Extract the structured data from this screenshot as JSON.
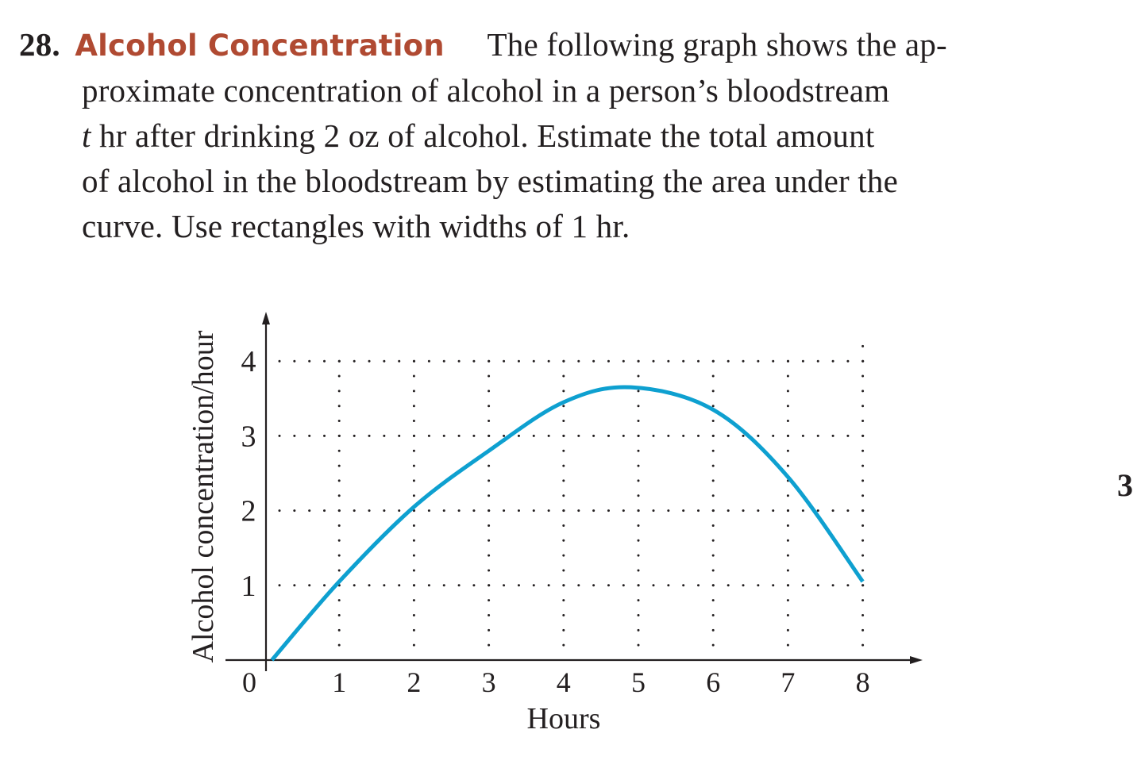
{
  "problem": {
    "number": "28.",
    "title": "Alcohol Concentration",
    "title_color": "#b04a32",
    "lines": [
      "The following graph shows the ap-",
      "proximate concentration of alcohol in a person’s bloodstream",
      "hr after drinking 2 oz of alcohol. Estimate the total amount",
      "of alcohol in the bloodstream by estimating the area under the",
      "curve. Use rectangles with widths of 1 hr."
    ],
    "variable": "t"
  },
  "side_marker": "3",
  "chart_data": {
    "type": "line",
    "title": "",
    "xlabel": "Hours",
    "ylabel": "Alcohol concentration/hour",
    "x_ticks": [
      "0",
      "1",
      "2",
      "3",
      "4",
      "5",
      "6",
      "7",
      "8"
    ],
    "y_ticks": [
      "1",
      "2",
      "3",
      "4"
    ],
    "xlim": [
      0,
      8.8
    ],
    "ylim": [
      0,
      4.4
    ],
    "grid": "dotted",
    "line_color": "#0ea0d0",
    "series": [
      {
        "name": "concentration",
        "x": [
          0.1,
          1,
          2,
          3,
          4,
          4.9,
          6,
          7,
          8
        ],
        "y": [
          0,
          1.05,
          2.05,
          2.8,
          3.45,
          3.65,
          3.35,
          2.45,
          1.05
        ]
      }
    ]
  }
}
